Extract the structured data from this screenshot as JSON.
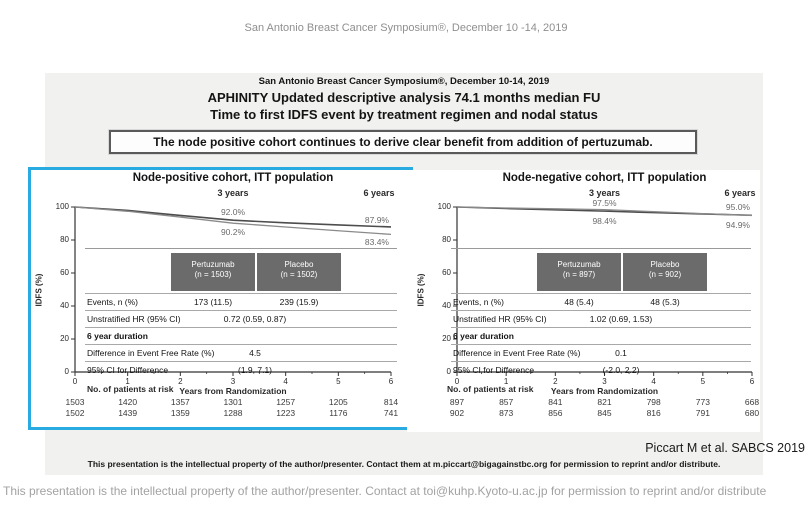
{
  "page": {
    "header": "San Antonio Breast Cancer Symposium®, December 10 -14, 2019",
    "footer": "This presentation is the intellectual property of the author/presenter. Contact at toi@kuhp.Kyoto-u.ac.jp for permission to reprint and/or distribute"
  },
  "slide": {
    "symposium_line": "San Antonio Breast Cancer Symposium®, December 10-14, 2019",
    "title_line1": "APHINITY Updated descriptive analysis 74.1 months median FU",
    "title_line2": "Time to first IDFS event by treatment regimen and nodal status",
    "callout": "The node positive cohort continues to derive clear benefit from addition of pertuzumab.",
    "citation": "Piccart M et al. SABCS 2019",
    "footer": "This presentation is the intellectual property of the author/presenter. Contact them at m.piccart@bigagainstbc.org for permission to reprint and/or distribute."
  },
  "colors": {
    "highlight_box": "#29abe2",
    "table_header_bg": "#6b6b6b",
    "pertuzumab_line": "#4d4d4d",
    "placebo_line": "#8a8a8a",
    "slide_bg": "#f1f1ef"
  },
  "chart_data": [
    {
      "type": "line",
      "title": "Node-positive cohort, ITT population",
      "xlabel": "Years from Randomization",
      "ylabel": "IDFS (%)",
      "ylim": [
        0,
        100
      ],
      "xlim": [
        0,
        6
      ],
      "yticks": [
        100,
        80,
        60,
        40,
        20,
        0
      ],
      "xticks": [
        0,
        1,
        2,
        3,
        4,
        5,
        6
      ],
      "time_labels": [
        "3 years",
        "6 years"
      ],
      "x": [
        0,
        1,
        2,
        3,
        4,
        5,
        6
      ],
      "series": [
        {
          "name": "Pertuzumab (n = 1503)",
          "values": [
            100,
            97.9,
            94.9,
            92.0,
            90.4,
            89.1,
            87.9
          ]
        },
        {
          "name": "Placebo (n = 1502)",
          "values": [
            100,
            97.4,
            93.9,
            90.2,
            87.9,
            85.6,
            83.4
          ]
        }
      ],
      "annotations": [
        {
          "text": "92.0%",
          "year": 3,
          "value": 92.0,
          "dy": -13,
          "anchor": "middle"
        },
        {
          "text": "90.2%",
          "year": 3,
          "value": 90.2,
          "dy": 4,
          "anchor": "middle"
        },
        {
          "text": "87.9%",
          "year": 6,
          "value": 87.9,
          "dy": -12,
          "anchor": "end"
        },
        {
          "text": "83.4%",
          "year": 6,
          "value": 83.4,
          "dy": 3,
          "anchor": "end"
        }
      ],
      "table": {
        "col_headers": [
          [
            "Pertuzumab",
            "(n = 1503)"
          ],
          [
            "Placebo",
            "(n = 1502)"
          ]
        ],
        "rows": [
          {
            "label": "Events, n (%)",
            "cells": [
              "173 (11.5)",
              "239 (15.9)"
            ]
          },
          {
            "label": "Unstratified HR (95% CI)",
            "span": "0.72 (0.59, 0.87)"
          },
          {
            "label": "6 year duration",
            "bold": true
          },
          {
            "label": "Difference in Event Free Rate (%)",
            "span": "4.5"
          },
          {
            "label": "95% CI for Difference",
            "span": "(1.9, 7.1)"
          }
        ]
      },
      "at_risk_label": "No. of patients at risk",
      "at_risk": [
        [
          "1503",
          "1420",
          "1357",
          "1301",
          "1257",
          "1205",
          "814"
        ],
        [
          "1502",
          "1439",
          "1359",
          "1288",
          "1223",
          "1176",
          "741"
        ]
      ]
    },
    {
      "type": "line",
      "title": "Node-negative cohort, ITT population",
      "xlabel": "Years from Randomization",
      "ylabel": "IDFS (%)",
      "ylim": [
        0,
        100
      ],
      "xlim": [
        0,
        6
      ],
      "yticks": [
        100,
        80,
        60,
        40,
        20,
        0
      ],
      "xticks": [
        0,
        1,
        2,
        3,
        4,
        5,
        6
      ],
      "time_labels": [
        "3 years",
        "6 years"
      ],
      "x": [
        0,
        1,
        2,
        3,
        4,
        5,
        6
      ],
      "series": [
        {
          "name": "Pertuzumab (n = 897)",
          "values": [
            100,
            99.1,
            98.3,
            97.5,
            96.6,
            95.8,
            95.0
          ]
        },
        {
          "name": "Placebo (n = 902)",
          "values": [
            100,
            99.4,
            98.9,
            98.4,
            97.2,
            96.0,
            94.9
          ]
        }
      ],
      "annotations": [
        {
          "text": "97.5%",
          "year": 3,
          "value": 97.5,
          "dy": -13,
          "anchor": "middle"
        },
        {
          "text": "98.4%",
          "year": 3,
          "value": 98.4,
          "dy": 6,
          "anchor": "middle"
        },
        {
          "text": "95.0%",
          "year": 6,
          "value": 95.0,
          "dy": -13,
          "anchor": "end"
        },
        {
          "text": "94.9%",
          "year": 6,
          "value": 94.9,
          "dy": 5,
          "anchor": "end"
        }
      ],
      "table": {
        "col_headers": [
          [
            "Pertuzumab",
            "(n = 897)"
          ],
          [
            "Placebo",
            "(n = 902)"
          ]
        ],
        "rows": [
          {
            "label": "Events, n (%)",
            "cells": [
              "48 (5.4)",
              "48 (5.3)"
            ]
          },
          {
            "label": "Unstratified HR (95% CI)",
            "span": "1.02 (0.69, 1.53)"
          },
          {
            "label": "6 year duration",
            "bold": true
          },
          {
            "label": "Difference in Event Free Rate (%)",
            "span": "0.1"
          },
          {
            "label": "95% CI for Difference",
            "span": "(-2.0, 2.2)"
          }
        ]
      },
      "at_risk_label": "No. of patients at risk",
      "at_risk": [
        [
          "897",
          "857",
          "841",
          "821",
          "798",
          "773",
          "668"
        ],
        [
          "902",
          "873",
          "856",
          "845",
          "816",
          "791",
          "680"
        ]
      ]
    }
  ]
}
